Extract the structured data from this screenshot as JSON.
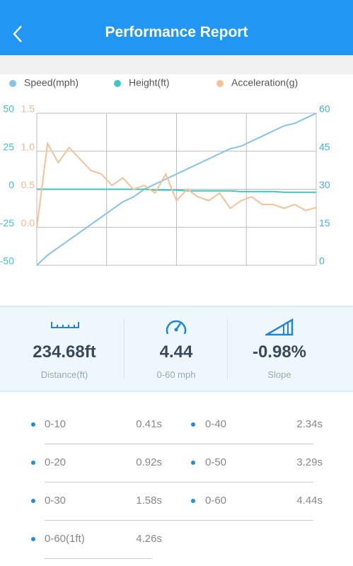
{
  "header": {
    "title": "Performance Report"
  },
  "chart_data": {
    "type": "line",
    "legend": [
      "Speed(mph)",
      "Height(ft)",
      "Acceleration(g)"
    ],
    "ylim": [
      -50,
      50
    ],
    "yticks": [
      -50,
      -25,
      0,
      25,
      50
    ],
    "y2lim": [
      -0.5,
      1.5
    ],
    "y2ticks": [
      {
        "value": 0,
        "label": "0.0"
      },
      {
        "value": 0.5,
        "label": "0.5"
      },
      {
        "value": 1,
        "label": "1.0"
      },
      {
        "value": 1.5,
        "label": "1.5"
      }
    ],
    "y3lim": [
      0,
      60
    ],
    "y3ticks": [
      0,
      15,
      30,
      45,
      60
    ],
    "grid": true,
    "series": [
      {
        "name": "Speed(mph)",
        "color": "#86c2ea",
        "axis": "y3",
        "values": [
          0,
          4,
          7,
          10,
          13,
          16,
          19,
          22,
          25,
          27,
          30,
          32,
          34,
          36,
          38,
          40,
          42,
          44,
          46,
          47,
          49,
          51,
          53,
          55,
          56,
          58,
          60
        ]
      },
      {
        "name": "Height(ft)",
        "color": "#3fc6c2",
        "axis": "y",
        "values": [
          0,
          0,
          0,
          0,
          0,
          0,
          0,
          0,
          0,
          0,
          0,
          -0.5,
          -0.5,
          -0.5,
          -1,
          -1,
          -1,
          -1,
          -1,
          -1.5,
          -1.5,
          -1.5,
          -1.5,
          -2,
          -2,
          -2,
          -2
        ]
      },
      {
        "name": "Acceleration(g)",
        "color": "#f7c198",
        "axis": "y2",
        "values": [
          0,
          1.1,
          0.85,
          1.05,
          0.9,
          0.75,
          0.7,
          0.55,
          0.65,
          0.5,
          0.55,
          0.45,
          0.7,
          0.35,
          0.5,
          0.4,
          0.35,
          0.45,
          0.25,
          0.35,
          0.4,
          0.3,
          0.3,
          0.25,
          0.3,
          0.22,
          0.26
        ]
      }
    ]
  },
  "stats": [
    {
      "value": "234.68ft",
      "label": "Distance(ft)"
    },
    {
      "value": "4.44",
      "label": "0-60 mph"
    },
    {
      "value": "-0.98%",
      "label": "Slope"
    }
  ],
  "times": [
    {
      "label": "0-10",
      "value": "0.41s"
    },
    {
      "label": "0-40",
      "value": "2.34s"
    },
    {
      "label": "0-20",
      "value": "0.92s"
    },
    {
      "label": "0-50",
      "value": "3.29s"
    },
    {
      "label": "0-30",
      "value": "1.58s"
    },
    {
      "label": "0-60",
      "value": "4.44s"
    },
    {
      "label": "0-60(1ft)",
      "value": "4.26s"
    }
  ]
}
